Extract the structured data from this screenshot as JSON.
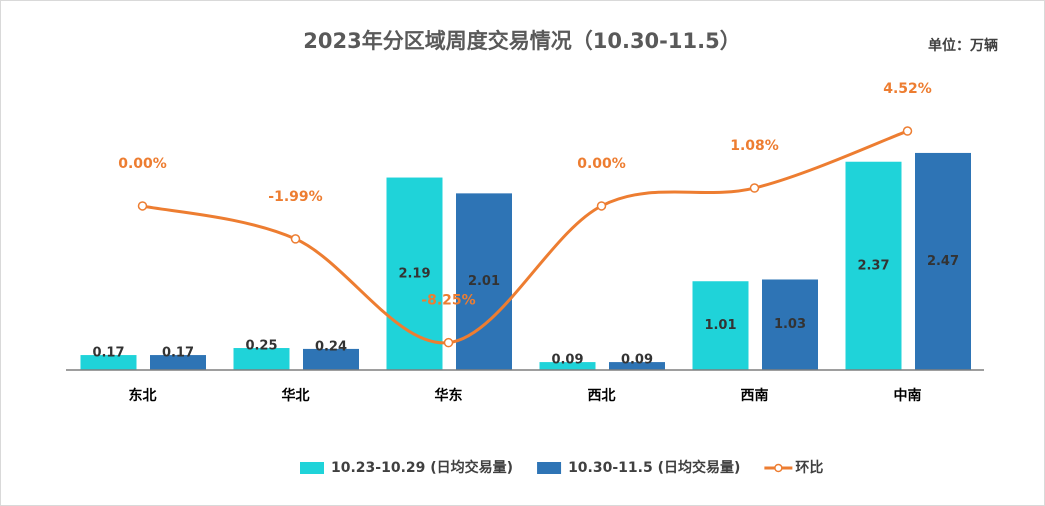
{
  "chart_data": {
    "type": "bar",
    "title": "2023年分区域周度交易情况（10.30-11.5）",
    "unit_label": "单位：万辆",
    "categories": [
      "东北",
      "华北",
      "华东",
      "西北",
      "西南",
      "中南"
    ],
    "series": [
      {
        "name": "10.23-10.29 (日均交易量)",
        "color": "#1fd3d9",
        "values": [
          0.17,
          0.25,
          2.19,
          0.09,
          1.01,
          2.37
        ]
      },
      {
        "name": "10.30-11.5 (日均交易量)",
        "color": "#2e74b5",
        "values": [
          0.17,
          0.24,
          2.01,
          0.09,
          1.03,
          2.47
        ]
      },
      {
        "name": "环比",
        "type": "line",
        "axis": "y2",
        "color": "#ed7d31",
        "values": [
          0,
          -1.99,
          -8.25,
          0,
          1.08,
          4.52
        ],
        "value_labels": [
          "0.00%",
          "-1.99%",
          "-8.25%",
          "0.00%",
          "1.08%",
          "4.52%"
        ]
      }
    ],
    "ylim": [
      0,
      3.3
    ],
    "y2lim": [
      -9.9,
      7.6
    ],
    "legend": "bottom"
  }
}
